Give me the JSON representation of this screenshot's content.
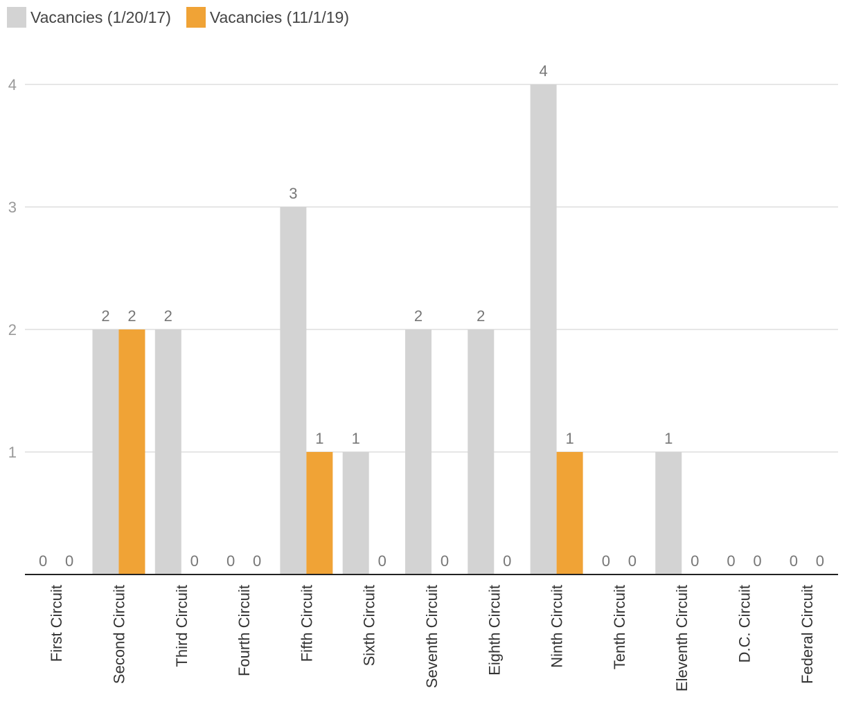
{
  "legend": {
    "series1_label": "Vacancies (1/20/17)",
    "series2_label": "Vacancies (11/1/19)"
  },
  "colors": {
    "series1": "#d3d3d3",
    "series2": "#f0a336",
    "grid": "#dddddd",
    "axis": "#222222",
    "tick_text": "#999999",
    "label_text": "#777777",
    "category_text": "#333333"
  },
  "chart_data": {
    "type": "bar",
    "categories": [
      "First Circuit",
      "Second Circuit",
      "Third Circuit",
      "Fourth Circuit",
      "Fifth Circuit",
      "Sixth Circuit",
      "Seventh Circuit",
      "Eighth Circuit",
      "Ninth Circuit",
      "Tenth Circuit",
      "Eleventh Circuit",
      "D.C. Circuit",
      "Federal Circuit"
    ],
    "series": [
      {
        "name": "Vacancies (1/20/17)",
        "values": [
          0,
          2,
          2,
          0,
          3,
          1,
          2,
          2,
          4,
          0,
          1,
          0,
          0
        ]
      },
      {
        "name": "Vacancies (11/1/19)",
        "values": [
          0,
          2,
          0,
          0,
          1,
          0,
          0,
          0,
          1,
          0,
          0,
          0,
          0
        ]
      }
    ],
    "yticks": [
      1,
      2,
      3,
      4
    ],
    "ylim": [
      0,
      4
    ],
    "grid": true,
    "legend_position": "top-left",
    "data_labels": true
  }
}
